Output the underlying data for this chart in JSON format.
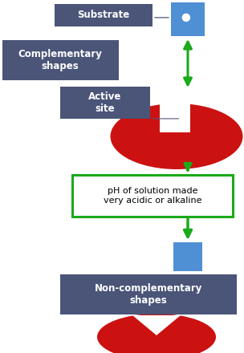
{
  "bg_color": "#ffffff",
  "dark_blue": "#4a5578",
  "blue": "#4f8fd4",
  "green": "#1aaa1a",
  "red": "#cc1111",
  "white": "#ffffff",
  "label_substrate": "Substrate",
  "label_complementary": "Complementary\nshapes",
  "label_active_site": "Active\nsite",
  "label_ph": "pH of solution made\nvery acidic or alkaline",
  "label_noncomp": "Non-complementary\nshapes",
  "fig_w": 3.04,
  "fig_h": 4.4,
  "dpi": 100
}
